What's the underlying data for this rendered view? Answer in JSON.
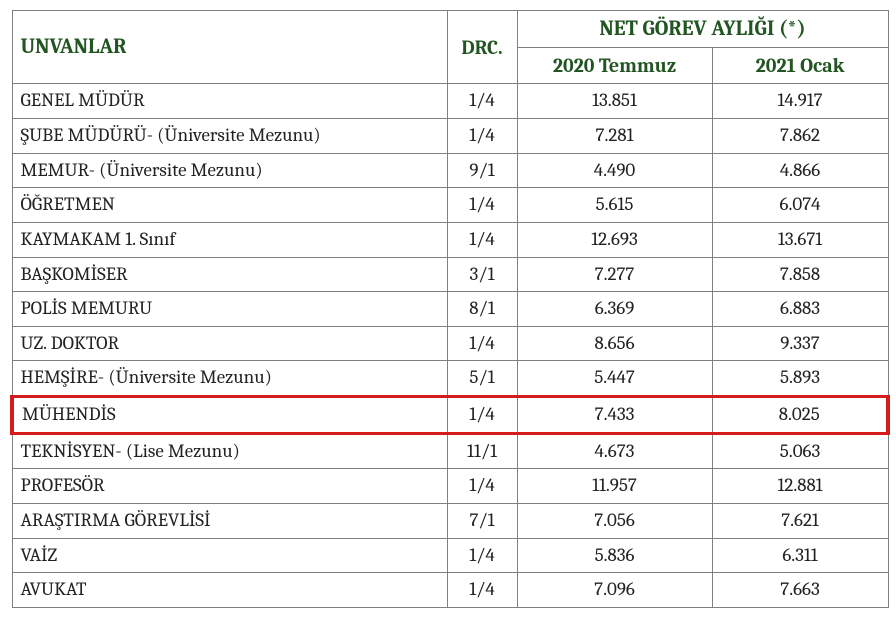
{
  "headers": {
    "unvanlar": "UNVANLAR",
    "drc": "DRC.",
    "net_gorev": "NET GÖREV AYLIĞI (*)",
    "jul2020": "2020 Temmuz",
    "jan2021": "2021 Ocak"
  },
  "highlight_color": "#d41c1c",
  "rows": [
    {
      "title": "GENEL MÜDÜR",
      "drc": "1/4",
      "jul": "13.851",
      "jan": "14.917",
      "hl": false
    },
    {
      "title": "ŞUBE MÜDÜRÜ- (Üniversite Mezunu)",
      "drc": "1/4",
      "jul": "7.281",
      "jan": "7.862",
      "hl": false
    },
    {
      "title": "MEMUR- (Üniversite Mezunu)",
      "drc": "9/1",
      "jul": "4.490",
      "jan": "4.866",
      "hl": false
    },
    {
      "title": "ÖĞRETMEN",
      "drc": "1/4",
      "jul": "5.615",
      "jan": "6.074",
      "hl": false
    },
    {
      "title": "KAYMAKAM 1. Sınıf",
      "drc": "1/4",
      "jul": "12.693",
      "jan": "13.671",
      "hl": false
    },
    {
      "title": "BAŞKOMİSER",
      "drc": "3/1",
      "jul": "7.277",
      "jan": "7.858",
      "hl": false
    },
    {
      "title": "POLİS MEMURU",
      "drc": "8/1",
      "jul": "6.369",
      "jan": "6.883",
      "hl": false
    },
    {
      "title": "UZ. DOKTOR",
      "drc": "1/4",
      "jul": "8.656",
      "jan": "9.337",
      "hl": false
    },
    {
      "title": "HEMŞİRE- (Üniversite Mezunu)",
      "drc": "5/1",
      "jul": "5.447",
      "jan": "5.893",
      "hl": false
    },
    {
      "title": "MÜHENDİS",
      "drc": "1/4",
      "jul": "7.433",
      "jan": "8.025",
      "hl": true
    },
    {
      "title": "TEKNİSYEN- (Lise Mezunu)",
      "drc": "11/1",
      "jul": "4.673",
      "jan": "5.063",
      "hl": false
    },
    {
      "title": "PROFESÖR",
      "drc": "1/4",
      "jul": "11.957",
      "jan": "12.881",
      "hl": false
    },
    {
      "title": "ARAŞTIRMA GÖREVLİSİ",
      "drc": "7/1",
      "jul": "7.056",
      "jan": "7.621",
      "hl": false
    },
    {
      "title": "VAİZ",
      "drc": "1/4",
      "jul": "5.836",
      "jan": "6.311",
      "hl": false
    },
    {
      "title": "AVUKAT",
      "drc": "1/4",
      "jul": "7.096",
      "jan": "7.663",
      "hl": false
    }
  ]
}
